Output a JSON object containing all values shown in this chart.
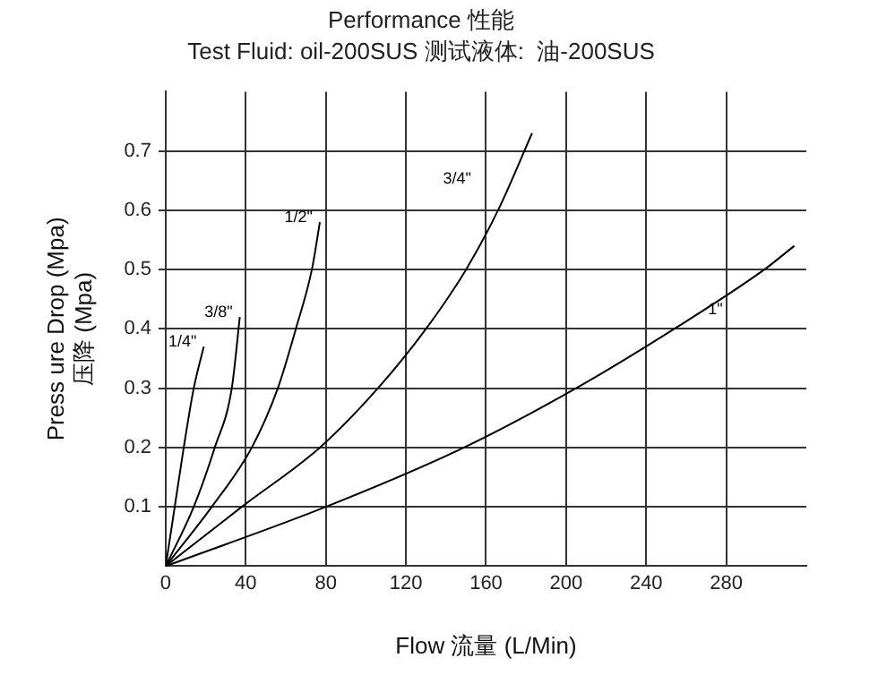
{
  "chart_data": {
    "type": "line",
    "title": "Performance 性能",
    "subtitle": "Test Fluid: oil-200SUS 测试液体:  油-200SUS",
    "xlabel": "Flow 流量 (L/Min)",
    "ylabel": "Press ure Drop (Mpa)\n压降 (Mpa)",
    "xlim": [
      0,
      320
    ],
    "xticks": [
      0,
      40,
      80,
      120,
      160,
      200,
      240,
      280
    ],
    "ylim": [
      0,
      0.8
    ],
    "yticks": [
      0.1,
      0.2,
      0.3,
      0.4,
      0.5,
      0.6,
      0.7
    ],
    "grid": true,
    "legend": false,
    "marker": "none",
    "line_style": "solid",
    "series": [
      {
        "name": "1/4\"",
        "color": "#000000",
        "x": [
          0,
          4.5,
          9,
          14,
          19
        ],
        "values": [
          0,
          0.1,
          0.2,
          0.3,
          0.37
        ]
      },
      {
        "name": "3/8\"",
        "color": "#000000",
        "x": [
          0,
          14,
          24.5,
          33,
          37
        ],
        "values": [
          0,
          0.1,
          0.2,
          0.3,
          0.42
        ]
      },
      {
        "name": "1/2\"",
        "color": "#000000",
        "x": [
          0,
          23,
          43,
          56,
          65,
          73,
          77
        ],
        "values": [
          0,
          0.1,
          0.2,
          0.3,
          0.4,
          0.5,
          0.58
        ]
      },
      {
        "name": "3/4\"",
        "color": "#000000",
        "x": [
          0,
          38,
          77,
          106,
          130,
          150,
          166,
          183
        ],
        "values": [
          0,
          0.1,
          0.2,
          0.3,
          0.4,
          0.5,
          0.6,
          0.73
        ]
      },
      {
        "name": "1\"",
        "color": "#000000",
        "x": [
          0,
          80,
          149,
          205,
          254,
          299,
          314
        ],
        "values": [
          0,
          0.1,
          0.2,
          0.3,
          0.4,
          0.5,
          0.54
        ]
      }
    ]
  }
}
